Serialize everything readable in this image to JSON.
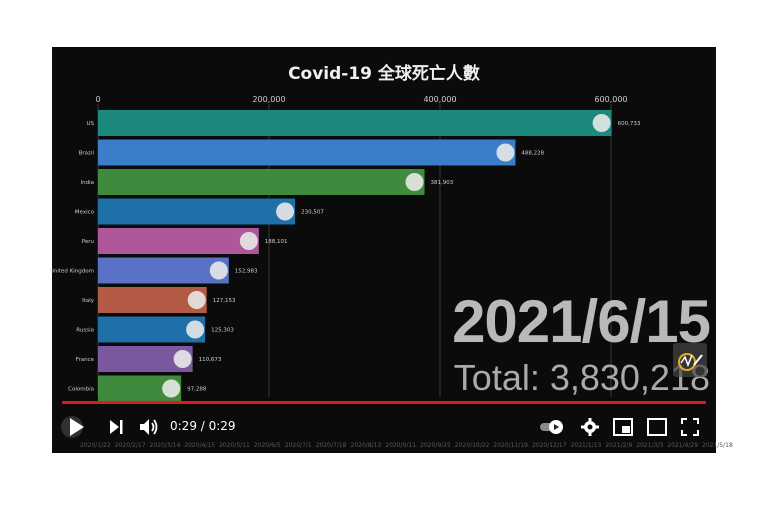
{
  "chart_data": {
    "type": "bar",
    "title": "Covid-19 全球死亡人數",
    "orientation": "horizontal",
    "x_ticks": [
      "0",
      "200,000",
      "400,000",
      "600,000"
    ],
    "xlim": [
      0,
      620000
    ],
    "grid": true,
    "categories": [
      "US",
      "Brazil",
      "India",
      "Mexico",
      "Peru",
      "United Kingdom",
      "Italy",
      "Russia",
      "France",
      "Colombia"
    ],
    "values": [
      600733,
      488228,
      381903,
      230507,
      188101,
      152983,
      127153,
      125303,
      110673,
      97288
    ],
    "value_labels": [
      "600,733",
      "488,228",
      "381,903",
      "230,507",
      "188,101",
      "152,983",
      "127,153",
      "125,303",
      "110,673",
      "97,288"
    ],
    "colors": [
      "#1b8a7c",
      "#3a7dc9",
      "#3f8a3c",
      "#1f6fa8",
      "#b0569a",
      "#5a72c6",
      "#b35a44",
      "#1f6fa8",
      "#7b59a0",
      "#3f8a3c"
    ],
    "date": "2021/6/15",
    "total": "Total: 3,830,218"
  },
  "player": {
    "time": "0:29 / 0:29",
    "progress": 1.0,
    "timeline": [
      "2020/1/22",
      "2020/2/17",
      "2020/3/14",
      "2020/4/15",
      "2020/5/11",
      "2020/6/5",
      "2020/7/1",
      "2020/7/18",
      "2020/8/13",
      "2020/9/11",
      "2020/9/25",
      "2020/10/22",
      "2020/11/19",
      "2020/12/17",
      "2021/1/13",
      "2021/2/9",
      "2021/3/3",
      "2021/4/29",
      "2021/5/18"
    ],
    "icons": [
      "play-icon",
      "skip-next-icon",
      "volume-icon",
      "autoplay-toggle-icon",
      "settings-icon",
      "miniplayer-icon",
      "theater-icon",
      "fullscreen-icon"
    ]
  }
}
